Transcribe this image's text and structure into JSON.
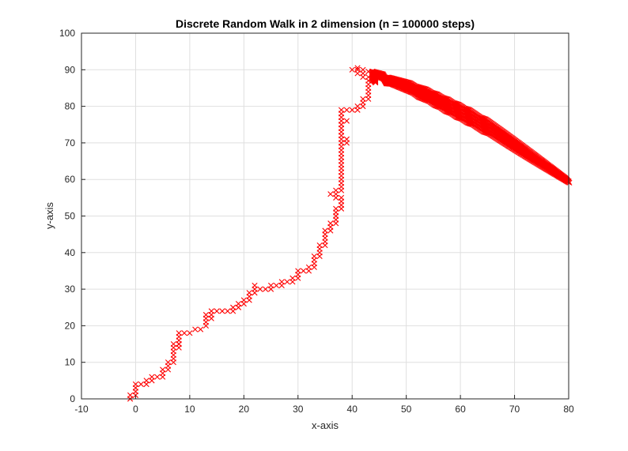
{
  "chart_data": {
    "type": "scatter",
    "title": "Discrete Random Walk in 2 dimension (n = 100000 steps)",
    "xlabel": "x-axis",
    "ylabel": "y-axis",
    "xlim": [
      -10,
      80
    ],
    "ylim": [
      0,
      100
    ],
    "xticks": [
      -10,
      0,
      10,
      20,
      30,
      40,
      50,
      60,
      70,
      80
    ],
    "yticks": [
      0,
      10,
      20,
      30,
      40,
      50,
      60,
      70,
      80,
      90,
      100
    ],
    "grid": true,
    "legend": "none",
    "marker": "x",
    "color": "#ff0000",
    "series": [
      {
        "points": [
          [
            -1,
            0
          ],
          [
            -1,
            1
          ],
          [
            0,
            1
          ],
          [
            0,
            2
          ],
          [
            0,
            3
          ],
          [
            0,
            4
          ],
          [
            1,
            4
          ],
          [
            2,
            4
          ],
          [
            2,
            5
          ],
          [
            3,
            5
          ],
          [
            3,
            6
          ],
          [
            4,
            6
          ],
          [
            5,
            6
          ],
          [
            5,
            7
          ],
          [
            5,
            8
          ],
          [
            6,
            8
          ],
          [
            6,
            9
          ],
          [
            6,
            10
          ],
          [
            7,
            10
          ],
          [
            7,
            11
          ],
          [
            7,
            12
          ],
          [
            7,
            13
          ],
          [
            7,
            14
          ],
          [
            7,
            15
          ],
          [
            8,
            15
          ],
          [
            8,
            14
          ],
          [
            8,
            16
          ],
          [
            8,
            17
          ],
          [
            8,
            18
          ],
          [
            9,
            18
          ],
          [
            10,
            18
          ],
          [
            11,
            19
          ],
          [
            12,
            19
          ],
          [
            13,
            20
          ],
          [
            13,
            21
          ],
          [
            13,
            22
          ],
          [
            14,
            22
          ],
          [
            14,
            23
          ],
          [
            13,
            23
          ],
          [
            14,
            24
          ],
          [
            15,
            24
          ],
          [
            16,
            24
          ],
          [
            17,
            24
          ],
          [
            18,
            24
          ],
          [
            18,
            25
          ],
          [
            19,
            25
          ],
          [
            19,
            26
          ],
          [
            20,
            26
          ],
          [
            20,
            27
          ],
          [
            21,
            27
          ],
          [
            21,
            28
          ],
          [
            21,
            29
          ],
          [
            22,
            29
          ],
          [
            22,
            30
          ],
          [
            22,
            31
          ],
          [
            23,
            30
          ],
          [
            24,
            30
          ],
          [
            25,
            30
          ],
          [
            25,
            31
          ],
          [
            26,
            31
          ],
          [
            27,
            31
          ],
          [
            27,
            32
          ],
          [
            28,
            32
          ],
          [
            29,
            32
          ],
          [
            29,
            33
          ],
          [
            30,
            33
          ],
          [
            30,
            34
          ],
          [
            30,
            35
          ],
          [
            31,
            35
          ],
          [
            32,
            35
          ],
          [
            32,
            36
          ],
          [
            33,
            36
          ],
          [
            33,
            37
          ],
          [
            33,
            38
          ],
          [
            33,
            39
          ],
          [
            34,
            39
          ],
          [
            34,
            40
          ],
          [
            34,
            41
          ],
          [
            34,
            42
          ],
          [
            35,
            42
          ],
          [
            35,
            43
          ],
          [
            35,
            44
          ],
          [
            35,
            45
          ],
          [
            35,
            46
          ],
          [
            36,
            46
          ],
          [
            36,
            47
          ],
          [
            36,
            48
          ],
          [
            37,
            48
          ],
          [
            37,
            49
          ],
          [
            37,
            50
          ],
          [
            37,
            51
          ],
          [
            37,
            52
          ],
          [
            38,
            52
          ],
          [
            38,
            53
          ],
          [
            38,
            54
          ],
          [
            38,
            55
          ],
          [
            37,
            55
          ],
          [
            37,
            56
          ],
          [
            36,
            56
          ],
          [
            37,
            57
          ],
          [
            38,
            57
          ],
          [
            38,
            58
          ],
          [
            38,
            59
          ],
          [
            38,
            60
          ],
          [
            38,
            61
          ],
          [
            38,
            62
          ],
          [
            38,
            63
          ],
          [
            38,
            64
          ],
          [
            38,
            65
          ],
          [
            38,
            66
          ],
          [
            38,
            67
          ],
          [
            38,
            68
          ],
          [
            38,
            69
          ],
          [
            38,
            70
          ],
          [
            39,
            70
          ],
          [
            39,
            71
          ],
          [
            38,
            71
          ],
          [
            38,
            72
          ],
          [
            38,
            73
          ],
          [
            38,
            74
          ],
          [
            38,
            75
          ],
          [
            38,
            76
          ],
          [
            39,
            76
          ],
          [
            38,
            77
          ],
          [
            38,
            78
          ],
          [
            38,
            79
          ],
          [
            39,
            79
          ],
          [
            40,
            79
          ],
          [
            41,
            79
          ],
          [
            41,
            80
          ],
          [
            42,
            80
          ],
          [
            42,
            81
          ],
          [
            42,
            82
          ],
          [
            43,
            82
          ],
          [
            43,
            83
          ],
          [
            43,
            84
          ],
          [
            43,
            85
          ],
          [
            43,
            86
          ],
          [
            43,
            87
          ],
          [
            44,
            87
          ],
          [
            44,
            88
          ],
          [
            43,
            88
          ],
          [
            42,
            88
          ],
          [
            42,
            89
          ],
          [
            41,
            89
          ],
          [
            41,
            90
          ],
          [
            40,
            90
          ],
          [
            41,
            90.5
          ],
          [
            42,
            90
          ],
          [
            43,
            89.5
          ],
          [
            44,
            89
          ],
          [
            45,
            88.5
          ],
          [
            46,
            88
          ],
          [
            46,
            87
          ],
          [
            47,
            87
          ],
          [
            48,
            86.5
          ],
          [
            49,
            86
          ],
          [
            50,
            85.5
          ],
          [
            51,
            85
          ],
          [
            52,
            84
          ],
          [
            53,
            83.5
          ],
          [
            54,
            83
          ],
          [
            55,
            82
          ],
          [
            56,
            81.5
          ],
          [
            57,
            80.5
          ],
          [
            58,
            80
          ],
          [
            59,
            79
          ],
          [
            60,
            78.5
          ],
          [
            61,
            77.5
          ],
          [
            62,
            77
          ],
          [
            63,
            76
          ],
          [
            64,
            75
          ],
          [
            65,
            74.5
          ],
          [
            66,
            73.5
          ],
          [
            67,
            72.5
          ],
          [
            68,
            71.5
          ],
          [
            69,
            70.5
          ],
          [
            70,
            69.5
          ],
          [
            71,
            68.5
          ],
          [
            72,
            67.5
          ],
          [
            73,
            66.5
          ],
          [
            74,
            65.5
          ],
          [
            75,
            64.5
          ],
          [
            76,
            63.5
          ],
          [
            77,
            62.5
          ],
          [
            78,
            61.5
          ],
          [
            79,
            60.5
          ],
          [
            80,
            59.5
          ]
        ]
      }
    ]
  }
}
